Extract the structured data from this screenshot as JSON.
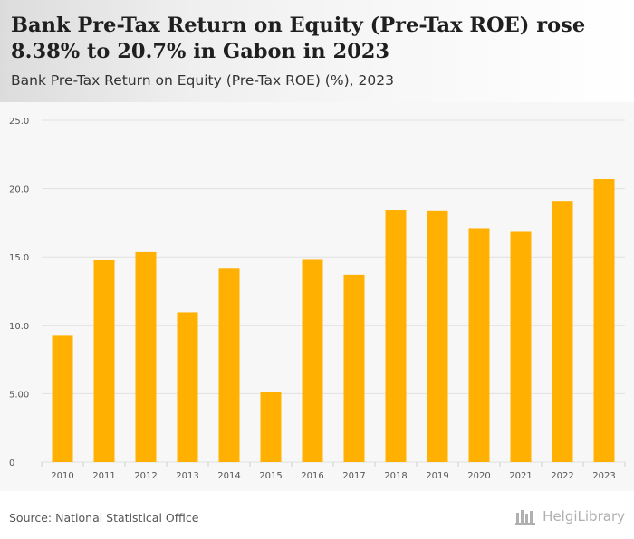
{
  "title": "Bank Pre-Tax Return on Equity (Pre-Tax ROE) rose 8.38% to 20.7% in Gabon in 2023",
  "subtitle": "Bank Pre-Tax Return on Equity (Pre-Tax ROE) (%), 2023",
  "source": "Source: National Statistical Office",
  "logo_text": "HelgiLibrary",
  "colors": {
    "bar": "#FFB000",
    "grid": "#e0e0e0",
    "axis_text": "#555555",
    "chart_bg": "#f7f7f7"
  },
  "chart_data": {
    "type": "bar",
    "title": "Bank Pre-Tax Return on Equity (Pre-Tax ROE) (%), 2023",
    "xlabel": "",
    "ylabel": "",
    "categories": [
      "2010",
      "2011",
      "2012",
      "2013",
      "2014",
      "2015",
      "2016",
      "2017",
      "2018",
      "2019",
      "2020",
      "2021",
      "2022",
      "2023"
    ],
    "values": [
      9.3,
      14.75,
      15.35,
      10.95,
      14.2,
      5.15,
      14.85,
      13.7,
      18.45,
      18.4,
      17.1,
      16.9,
      19.1,
      20.7
    ],
    "ylim": [
      0,
      25
    ],
    "yticks": [
      0,
      5,
      10,
      15,
      20,
      25
    ],
    "ytick_labels": [
      "0",
      "5.00",
      "10.0",
      "15.0",
      "20.0",
      "25.0"
    ],
    "grid": true
  }
}
